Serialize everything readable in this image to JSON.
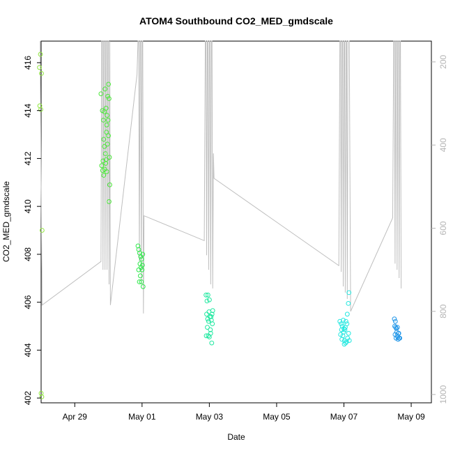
{
  "chart_data": {
    "type": "scatter",
    "title": "ATOM4 Southbound CO2_MED_gmdscale",
    "xlabel": "Date",
    "ylabel": "CO2_MED_gmdscale",
    "x_ticks": [
      {
        "day": 0,
        "label": "Apr 29"
      },
      {
        "day": 2,
        "label": "May 01"
      },
      {
        "day": 4,
        "label": "May 03"
      },
      {
        "day": 6,
        "label": "May 05"
      },
      {
        "day": 8,
        "label": "May 07"
      },
      {
        "day": 10,
        "label": "May 09"
      }
    ],
    "xlim": [
      -1.0,
      10.6
    ],
    "ylim": [
      401.8,
      416.9
    ],
    "y_ticks": [
      402,
      404,
      406,
      408,
      410,
      412,
      414,
      416
    ],
    "y2_ticks": [
      200,
      400,
      600,
      800,
      1000
    ],
    "y2lim": [
      1020,
      150
    ],
    "y2_color": "#b4b4b4",
    "line_color": "#bebebe",
    "point_groups": [
      {
        "color": "#8fe63c",
        "points": [
          [
            -1.02,
            416.35
          ],
          [
            -1.05,
            415.8
          ],
          [
            -0.99,
            415.55
          ],
          [
            -1.04,
            414.2
          ],
          [
            -1.01,
            414.05
          ],
          [
            -0.97,
            409.0
          ],
          [
            -1.0,
            402.2
          ],
          [
            -0.98,
            402.05
          ]
        ]
      },
      {
        "color": "#4ce83a",
        "points": [
          [
            0.78,
            414.7
          ],
          [
            0.82,
            414.0
          ],
          [
            0.85,
            413.6
          ],
          [
            0.88,
            413.95
          ],
          [
            0.9,
            414.9
          ],
          [
            0.93,
            414.1
          ],
          [
            0.96,
            413.8
          ],
          [
            0.98,
            414.6
          ],
          [
            1.0,
            415.1
          ],
          [
            1.02,
            414.5
          ],
          [
            0.95,
            413.4
          ],
          [
            0.86,
            412.8
          ],
          [
            0.88,
            412.5
          ],
          [
            0.91,
            412.2
          ],
          [
            0.93,
            411.95
          ],
          [
            0.97,
            412.6
          ],
          [
            1.0,
            412.95
          ],
          [
            1.03,
            412.05
          ],
          [
            0.8,
            411.7
          ],
          [
            0.83,
            411.5
          ],
          [
            0.86,
            411.3
          ],
          [
            0.89,
            411.55
          ],
          [
            0.92,
            411.8
          ],
          [
            0.95,
            411.45
          ],
          [
            0.84,
            411.9
          ],
          [
            1.04,
            410.9
          ],
          [
            1.02,
            410.2
          ],
          [
            0.94,
            413.1
          ],
          [
            0.99,
            413.6
          ]
        ]
      },
      {
        "color": "#2ee84a",
        "points": [
          [
            1.88,
            408.35
          ],
          [
            1.9,
            408.2
          ],
          [
            1.93,
            408.05
          ],
          [
            1.96,
            407.9
          ],
          [
            1.99,
            407.8
          ],
          [
            2.02,
            408.0
          ],
          [
            1.94,
            407.6
          ],
          [
            1.97,
            407.45
          ],
          [
            2.0,
            407.35
          ],
          [
            1.9,
            407.35
          ],
          [
            1.92,
            406.85
          ],
          [
            1.98,
            406.85
          ],
          [
            2.03,
            406.65
          ],
          [
            1.95,
            407.1
          ],
          [
            2.01,
            407.55
          ]
        ]
      },
      {
        "color": "#20e8a0",
        "points": [
          [
            3.9,
            406.3
          ],
          [
            3.96,
            406.3
          ],
          [
            4.0,
            406.1
          ],
          [
            3.93,
            406.05
          ],
          [
            4.05,
            405.4
          ],
          [
            4.1,
            405.65
          ],
          [
            3.92,
            405.5
          ],
          [
            3.95,
            405.3
          ],
          [
            3.98,
            405.2
          ],
          [
            4.02,
            405.4
          ],
          [
            4.06,
            405.25
          ],
          [
            4.09,
            405.1
          ],
          [
            3.94,
            404.95
          ],
          [
            3.97,
            404.6
          ],
          [
            4.0,
            404.55
          ],
          [
            4.04,
            404.7
          ],
          [
            4.07,
            404.3
          ],
          [
            3.91,
            404.6
          ],
          [
            4.03,
            404.85
          ],
          [
            3.99,
            405.6
          ],
          [
            4.08,
            405.5
          ]
        ]
      },
      {
        "color": "#22e8e0",
        "points": [
          [
            7.88,
            405.2
          ],
          [
            7.92,
            405.1
          ],
          [
            7.95,
            405.0
          ],
          [
            7.98,
            405.25
          ],
          [
            8.0,
            404.9
          ],
          [
            8.03,
            404.85
          ],
          [
            8.06,
            405.2
          ],
          [
            8.1,
            405.5
          ],
          [
            8.13,
            405.95
          ],
          [
            8.15,
            406.4
          ],
          [
            7.9,
            404.65
          ],
          [
            7.94,
            404.45
          ],
          [
            7.97,
            404.6
          ],
          [
            8.02,
            404.4
          ],
          [
            8.05,
            404.3
          ],
          [
            8.08,
            404.35
          ],
          [
            8.11,
            404.5
          ],
          [
            8.14,
            404.7
          ],
          [
            7.99,
            404.75
          ],
          [
            8.04,
            404.95
          ],
          [
            7.93,
            404.85
          ],
          [
            8.09,
            405.1
          ],
          [
            8.01,
            404.25
          ],
          [
            8.16,
            404.4
          ]
        ]
      },
      {
        "color": "#2196e8",
        "points": [
          [
            9.5,
            405.3
          ],
          [
            9.53,
            405.2
          ],
          [
            9.56,
            404.9
          ],
          [
            9.59,
            404.95
          ],
          [
            9.62,
            404.7
          ],
          [
            9.52,
            404.65
          ],
          [
            9.55,
            404.5
          ],
          [
            9.58,
            404.6
          ],
          [
            9.61,
            404.45
          ],
          [
            9.64,
            404.5
          ],
          [
            9.66,
            404.5
          ],
          [
            9.54,
            404.95
          ],
          [
            9.57,
            404.75
          ],
          [
            9.6,
            404.55
          ],
          [
            9.63,
            404.7
          ],
          [
            9.51,
            405.0
          ]
        ]
      }
    ],
    "line_x": [
      -1.03,
      -1.0,
      -0.97,
      0.78,
      0.8,
      0.82,
      0.84,
      0.86,
      0.88,
      0.9,
      0.92,
      0.94,
      0.96,
      0.98,
      1.0,
      1.02,
      1.04,
      1.06,
      1.85,
      1.88,
      1.9,
      1.92,
      1.94,
      1.96,
      1.98,
      2.0,
      2.02,
      2.04,
      2.06,
      3.85,
      3.88,
      3.9,
      3.92,
      3.94,
      3.96,
      3.98,
      4.0,
      4.02,
      4.04,
      4.06,
      4.08,
      4.1,
      4.12,
      4.14,
      7.85,
      7.88,
      7.9,
      7.92,
      7.94,
      7.96,
      7.98,
      8.0,
      8.02,
      8.04,
      8.06,
      8.08,
      8.1,
      8.12,
      8.14,
      8.16,
      8.2,
      9.45,
      9.48,
      9.5,
      9.52,
      9.54,
      9.56,
      9.58,
      9.6,
      9.62,
      9.64,
      9.66,
      9.68,
      9.7
    ],
    "line_y2": [
      100,
      500,
      785,
      680,
      110,
      90,
      700,
      110,
      100,
      700,
      110,
      90,
      700,
      110,
      100,
      735,
      110,
      785,
      230,
      110,
      100,
      680,
      110,
      90,
      735,
      100,
      110,
      805,
      570,
      630,
      110,
      100,
      665,
      110,
      90,
      700,
      100,
      110,
      735,
      100,
      110,
      745,
      420,
      480,
      690,
      110,
      100,
      705,
      110,
      90,
      740,
      100,
      110,
      755,
      100,
      110,
      770,
      110,
      100,
      110,
      800,
      575,
      110,
      100,
      685,
      110,
      90,
      700,
      100,
      110,
      720,
      100,
      110,
      745
    ]
  }
}
